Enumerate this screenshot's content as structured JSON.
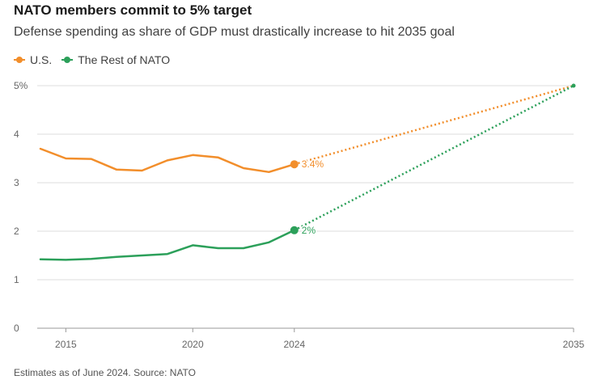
{
  "chart_data": {
    "type": "line",
    "title": "NATO members commit to 5% target",
    "subtitle": "Defense spending as share of GDP must drastically increase to hit 2035 goal",
    "source": "Estimates as of June 2024. Source: NATO",
    "xlabel": "",
    "ylabel": "",
    "xlim": [
      2014,
      2035
    ],
    "ylim": [
      0,
      5
    ],
    "x_ticks": [
      2015,
      2020,
      2024,
      2035
    ],
    "y_ticks": [
      {
        "value": 0,
        "label": "0"
      },
      {
        "value": 1,
        "label": "1"
      },
      {
        "value": 2,
        "label": "2"
      },
      {
        "value": 3,
        "label": "3"
      },
      {
        "value": 4,
        "label": "4"
      },
      {
        "value": 5,
        "label": "5%"
      }
    ],
    "grid": true,
    "legend_position": "top-left",
    "series": [
      {
        "name": "U.S.",
        "color": "#f28e2b",
        "x": [
          2014,
          2015,
          2016,
          2017,
          2018,
          2019,
          2020,
          2021,
          2022,
          2023,
          2024
        ],
        "y": [
          3.7,
          3.5,
          3.49,
          3.27,
          3.25,
          3.46,
          3.57,
          3.52,
          3.3,
          3.22,
          3.38
        ],
        "projection": {
          "x": [
            2024,
            2035
          ],
          "y": [
            3.38,
            5.0
          ]
        },
        "end_label": "3.4%"
      },
      {
        "name": "The Rest of NATO",
        "color": "#2ca05a",
        "x": [
          2014,
          2015,
          2016,
          2017,
          2018,
          2019,
          2020,
          2021,
          2022,
          2023,
          2024
        ],
        "y": [
          1.42,
          1.41,
          1.43,
          1.47,
          1.5,
          1.53,
          1.71,
          1.65,
          1.65,
          1.77,
          2.02
        ],
        "projection": {
          "x": [
            2024,
            2035
          ],
          "y": [
            2.02,
            5.0
          ]
        },
        "end_label": "2%"
      }
    ]
  }
}
